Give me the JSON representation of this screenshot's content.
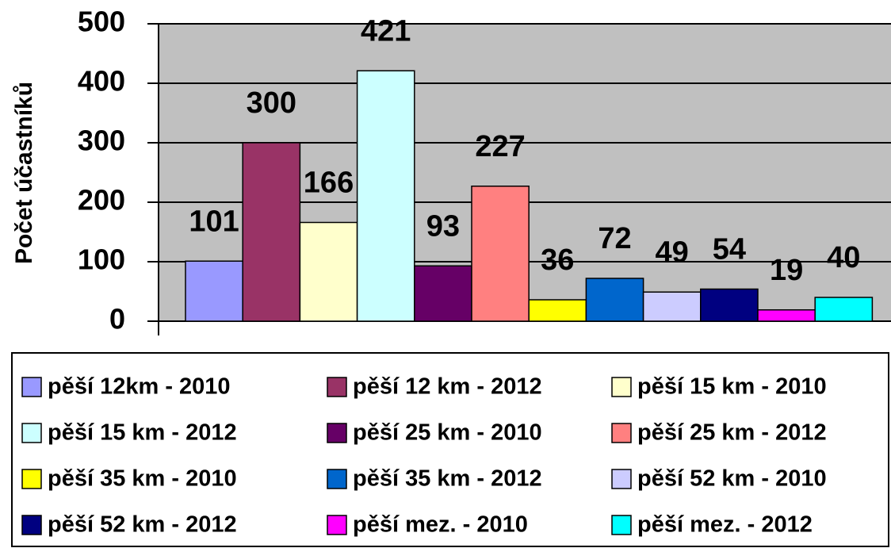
{
  "chart_data": {
    "type": "bar",
    "y_label": "Počet účastníků",
    "categories": [
      null
    ],
    "series": [
      {
        "name": "pěší 12km - 2010",
        "color": "#9999ff",
        "values": [
          101
        ]
      },
      {
        "name": "pěší 12 km - 2012",
        "color": "#993366",
        "values": [
          300
        ]
      },
      {
        "name": "pěší 15 km - 2010",
        "color": "#ffffcc",
        "values": [
          166
        ]
      },
      {
        "name": "pěší 15 km - 2012",
        "color": "#ccffff",
        "values": [
          421
        ]
      },
      {
        "name": "pěší 25 km - 2010",
        "color": "#660066",
        "values": [
          93
        ]
      },
      {
        "name": "pěší 25 km - 2012",
        "color": "#ff8080",
        "values": [
          227
        ]
      },
      {
        "name": "pěší 35 km - 2010",
        "color": "#ffff00",
        "values": [
          36
        ]
      },
      {
        "name": "pěší 35 km - 2012",
        "color": "#0066cc",
        "values": [
          72
        ]
      },
      {
        "name": "pěší 52 km - 2010",
        "color": "#ccccff",
        "values": [
          49
        ]
      },
      {
        "name": "pěší 52 km - 2012",
        "color": "#000080",
        "values": [
          54
        ]
      },
      {
        "name": "pěší mez. - 2010",
        "color": "#ff00ff",
        "values": [
          19
        ]
      },
      {
        "name": "pěší mez. - 2012",
        "color": "#00ffff",
        "values": [
          40
        ]
      }
    ],
    "ylim": [
      0,
      500
    ],
    "yticks": [
      0,
      100,
      200,
      300,
      400,
      500
    ],
    "grid": true,
    "legend": "bottom"
  }
}
